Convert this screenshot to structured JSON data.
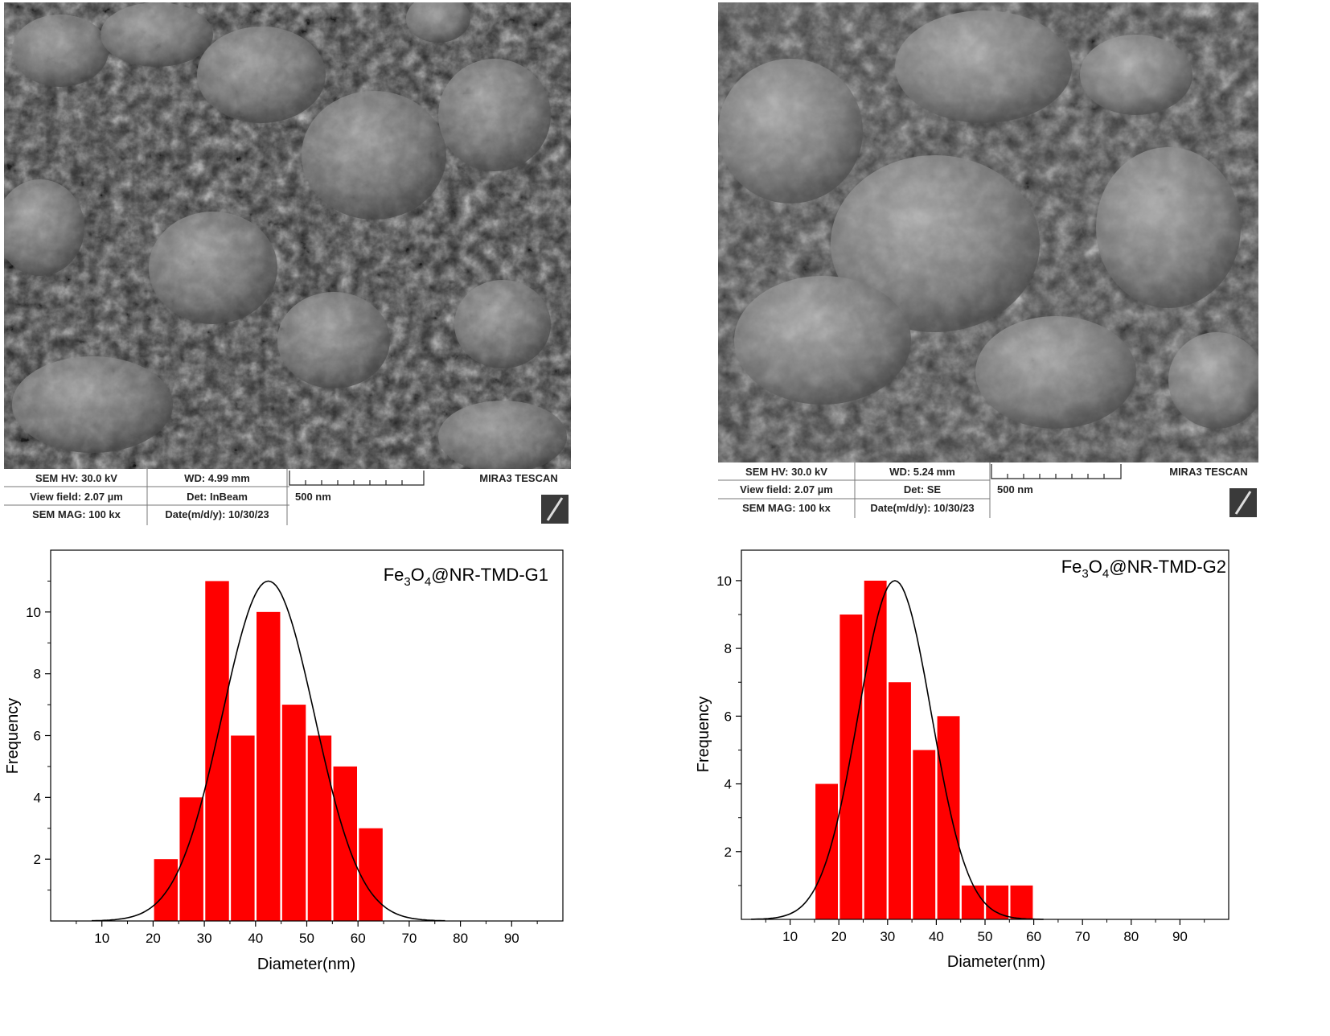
{
  "sem_images": [
    {
      "row1": [
        "SEM HV: 30.0 kV",
        "WD: 4.99 mm",
        "MIRA3 TESCAN"
      ],
      "row2": [
        "View field: 2.07 µm",
        "Det: InBeam",
        "500 nm"
      ],
      "row3": [
        "SEM MAG: 100 kx",
        "Date(m/d/y): 10/30/23"
      ]
    },
    {
      "row1": [
        "SEM HV: 30.0 kV",
        "WD: 5.24 mm",
        "MIRA3 TESCAN"
      ],
      "row2": [
        "View field: 2.07 µm",
        "Det: SE",
        "500 nm"
      ],
      "row3": [
        "SEM MAG: 100 kx",
        "Date(m/d/y): 10/30/23"
      ]
    }
  ],
  "colors": {
    "bar": "#ff0000",
    "curve": "#000000",
    "axis": "#000000"
  },
  "chart_data": [
    {
      "type": "bar",
      "annotation": {
        "base": "Fe",
        "sub1": "3",
        "mid": "O",
        "sub2": "4",
        "rest": "@NR-TMD-G1"
      },
      "xlabel": "Diameter(nm)",
      "ylabel": "Frequency",
      "xlim": [
        0,
        100
      ],
      "ylim": [
        0,
        12
      ],
      "xticks": [
        10,
        20,
        30,
        40,
        50,
        60,
        70,
        80,
        90
      ],
      "yticks": [
        2,
        4,
        6,
        8,
        10
      ],
      "bins": [
        {
          "x0": 20,
          "x1": 25,
          "count": 2
        },
        {
          "x0": 25,
          "x1": 30,
          "count": 4
        },
        {
          "x0": 30,
          "x1": 35,
          "count": 11
        },
        {
          "x0": 35,
          "x1": 40,
          "count": 6
        },
        {
          "x0": 40,
          "x1": 45,
          "count": 10
        },
        {
          "x0": 45,
          "x1": 50,
          "count": 7
        },
        {
          "x0": 50,
          "x1": 55,
          "count": 6
        },
        {
          "x0": 55,
          "x1": 60,
          "count": 5
        },
        {
          "x0": 60,
          "x1": 65,
          "count": 3
        }
      ],
      "fit": {
        "type": "normal",
        "mean": 42.5,
        "sd": 9,
        "peak": 11,
        "from": 8,
        "to": 77
      }
    },
    {
      "type": "bar",
      "annotation": {
        "base": "Fe",
        "sub1": "3",
        "mid": "O",
        "sub2": "4",
        "rest": "@NR-TMD-G2"
      },
      "xlabel": "Diameter(nm)",
      "ylabel": "Frequency",
      "xlim": [
        0,
        100
      ],
      "ylim": [
        0,
        10.9
      ],
      "xticks": [
        10,
        20,
        30,
        40,
        50,
        60,
        70,
        80,
        90
      ],
      "yticks": [
        2,
        4,
        6,
        8,
        10
      ],
      "bins": [
        {
          "x0": 15,
          "x1": 20,
          "count": 4
        },
        {
          "x0": 20,
          "x1": 25,
          "count": 9
        },
        {
          "x0": 25,
          "x1": 30,
          "count": 10
        },
        {
          "x0": 30,
          "x1": 35,
          "count": 7
        },
        {
          "x0": 35,
          "x1": 40,
          "count": 5
        },
        {
          "x0": 40,
          "x1": 45,
          "count": 6
        },
        {
          "x0": 45,
          "x1": 50,
          "count": 1
        },
        {
          "x0": 50,
          "x1": 55,
          "count": 1
        },
        {
          "x0": 55,
          "x1": 60,
          "count": 1
        }
      ],
      "fit": {
        "type": "normal",
        "mean": 31.5,
        "sd": 7.5,
        "peak": 10,
        "from": 2,
        "to": 62
      }
    }
  ]
}
